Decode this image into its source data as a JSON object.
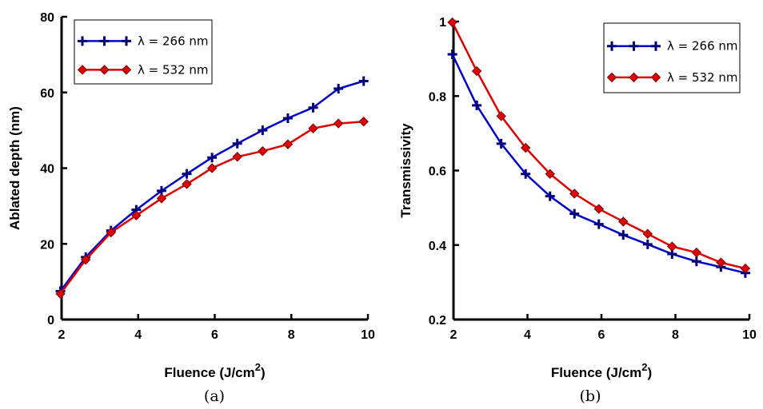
{
  "chart_data": [
    {
      "type": "line",
      "caption": "(a)",
      "xlabel": "Fluence (J/cm",
      "xlabel_sup": "2",
      "xlabel_end": ")",
      "ylabel": "Ablated depth (nm)",
      "xlim": [
        2,
        10
      ],
      "ylim": [
        0,
        80
      ],
      "xticks": [
        2,
        4,
        6,
        8,
        10
      ],
      "yticks": [
        0,
        20,
        40,
        60,
        80
      ],
      "legend_position": "top-left",
      "series": [
        {
          "name": "λ = 266 nm",
          "color": "#0000cc",
          "marker": "plus",
          "x": [
            1.97,
            2.63,
            3.29,
            3.95,
            4.61,
            5.27,
            5.93,
            6.59,
            7.25,
            7.91,
            8.57,
            9.23,
            9.89
          ],
          "y": [
            7.5,
            16.5,
            23.5,
            29,
            34,
            38.5,
            42.8,
            46.5,
            50,
            53.2,
            56,
            61,
            63
          ]
        },
        {
          "name": "λ = 532 nm",
          "color": "#e00000",
          "marker": "diamond",
          "x": [
            1.97,
            2.63,
            3.29,
            3.95,
            4.61,
            5.27,
            5.93,
            6.59,
            7.25,
            7.91,
            8.57,
            9.23,
            9.89
          ],
          "y": [
            6.8,
            15.8,
            23,
            27.5,
            32,
            35.8,
            40,
            43,
            44.5,
            46.3,
            50.5,
            51.8,
            52.3
          ]
        }
      ]
    },
    {
      "type": "line",
      "caption": "(b)",
      "xlabel": "Fluence (J/cm",
      "xlabel_sup": "2",
      "xlabel_end": ")",
      "ylabel": "Transmissivity",
      "xlim": [
        2,
        10
      ],
      "ylim": [
        0.2,
        1
      ],
      "xticks": [
        2,
        4,
        6,
        8,
        10
      ],
      "yticks": [
        0.2,
        0.4,
        0.6,
        0.8,
        1
      ],
      "ytick_labels": [
        "0.2",
        "0.4",
        "0.6",
        "0.8",
        "1"
      ],
      "legend_position": "top-right",
      "series": [
        {
          "name": "λ = 266 nm",
          "color": "#0000cc",
          "marker": "plus",
          "x": [
            1.97,
            2.63,
            3.29,
            3.95,
            4.61,
            5.27,
            5.93,
            6.59,
            7.25,
            7.91,
            8.57,
            9.23,
            9.89
          ],
          "y": [
            0.912,
            0.775,
            0.672,
            0.591,
            0.531,
            0.484,
            0.456,
            0.427,
            0.402,
            0.376,
            0.356,
            0.341,
            0.325
          ]
        },
        {
          "name": "λ = 532 nm",
          "color": "#e00000",
          "marker": "diamond",
          "x": [
            1.97,
            2.63,
            3.29,
            3.95,
            4.61,
            5.27,
            5.93,
            6.59,
            7.25,
            7.91,
            8.57,
            9.23,
            9.89
          ],
          "y": [
            0.998,
            0.867,
            0.746,
            0.661,
            0.591,
            0.538,
            0.497,
            0.463,
            0.43,
            0.396,
            0.38,
            0.353,
            0.337
          ]
        }
      ]
    }
  ]
}
